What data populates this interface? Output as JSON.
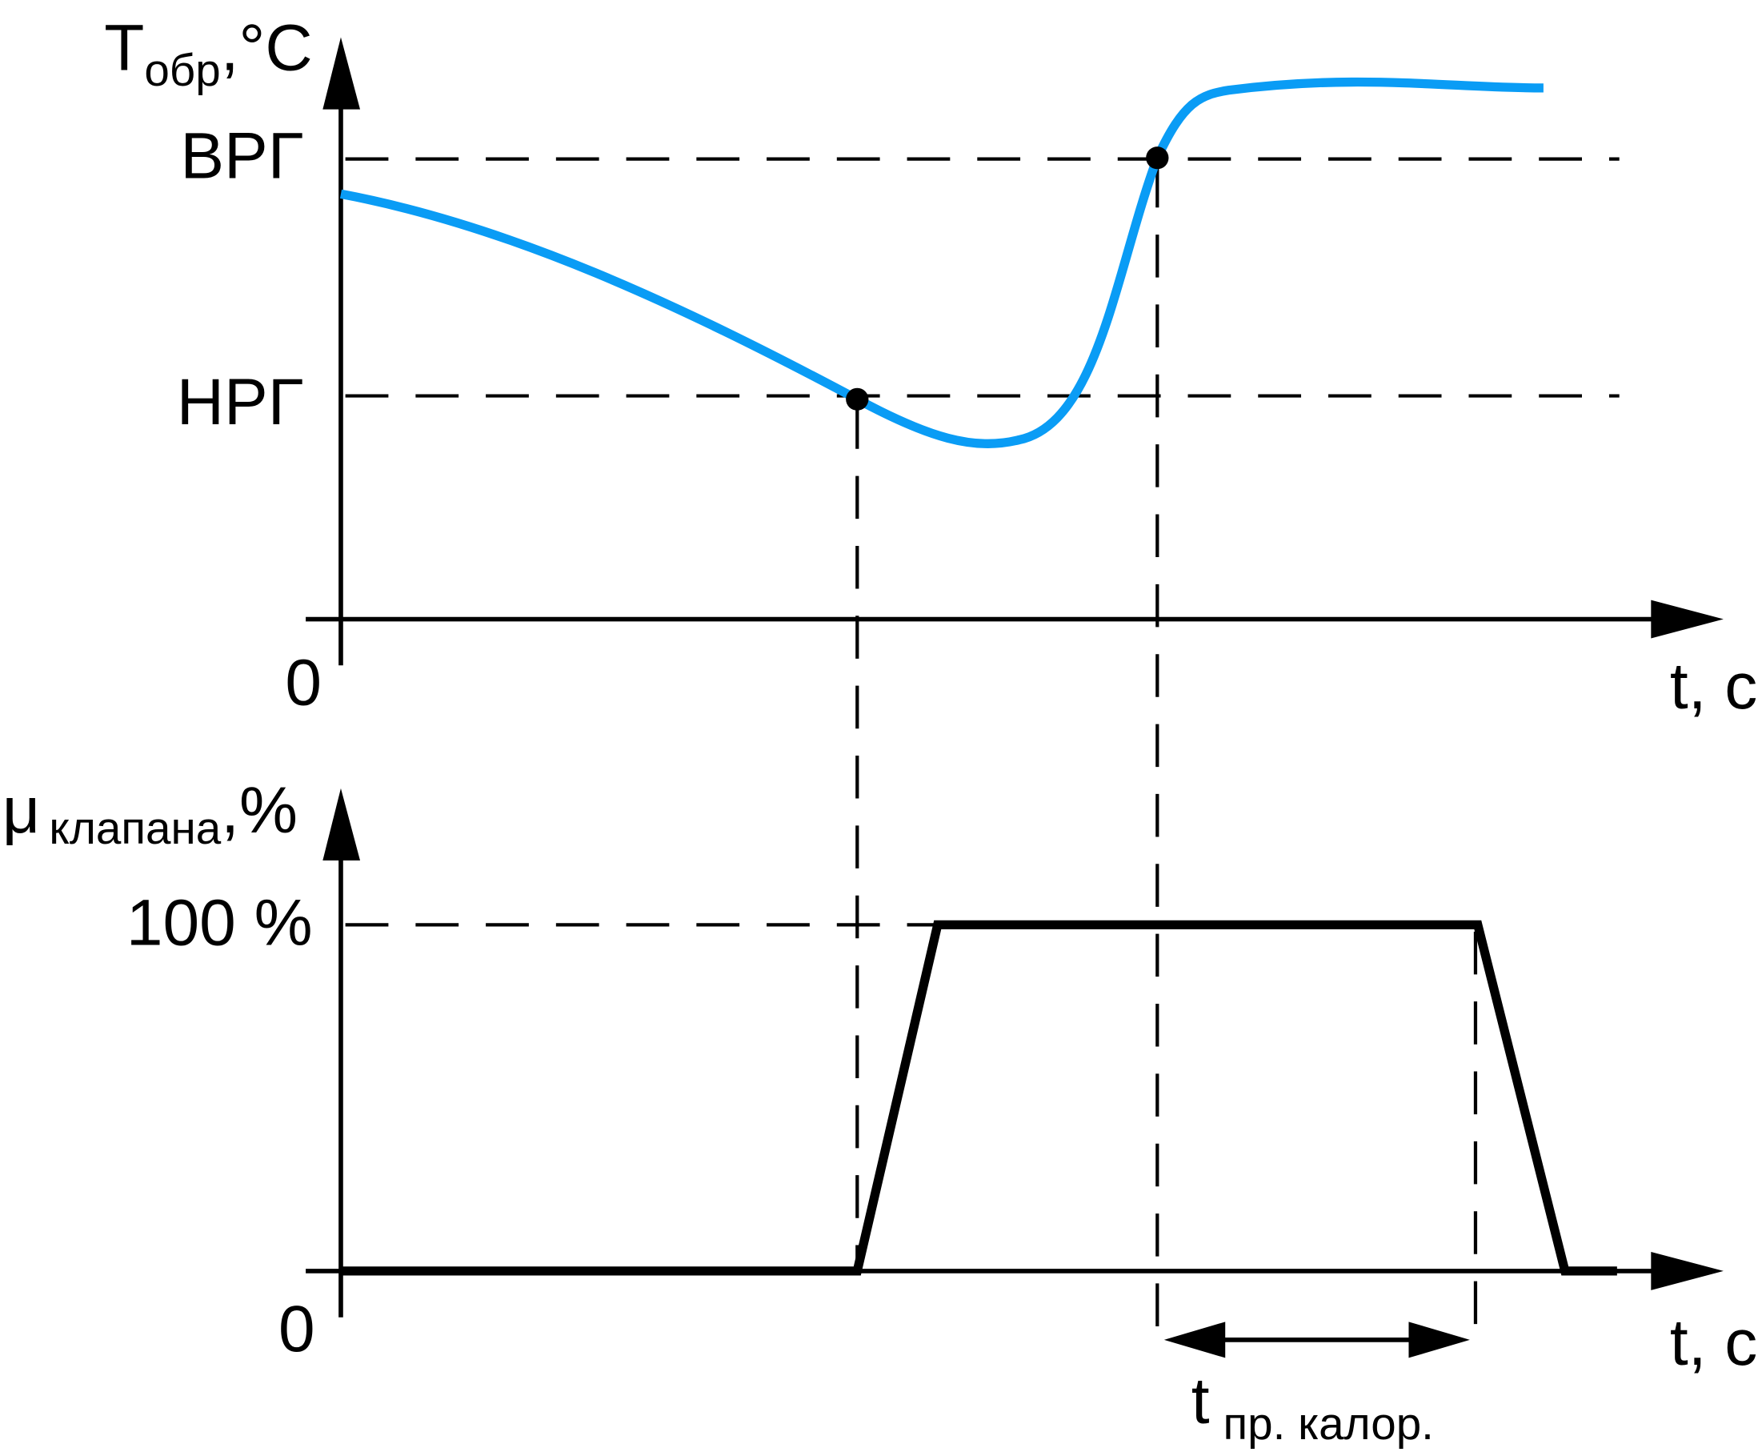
{
  "top_chart": {
    "y_axis_label": {
      "main": "T",
      "subscript": "обр",
      "unit": ",°C"
    },
    "levels": [
      "ВРГ",
      "НРГ"
    ],
    "origin": "0",
    "x_axis_label": "t, с"
  },
  "bottom_chart": {
    "y_axis_label": {
      "main": "μ",
      "subscript": "клапана",
      "unit": ",%"
    },
    "level": "100 %",
    "origin": "0",
    "x_axis_label": "t, с",
    "interval_label": {
      "main": "t",
      "subscript": "пр. калор."
    }
  }
}
